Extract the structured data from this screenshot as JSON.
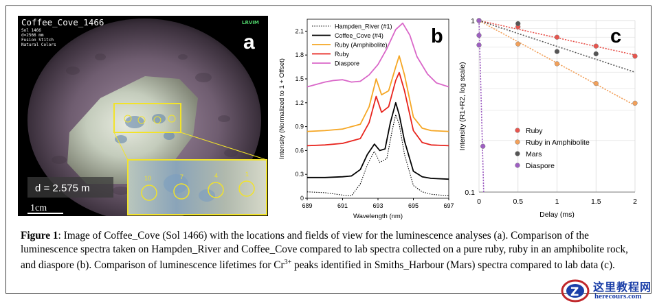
{
  "panel_a": {
    "image_title": "Coffee_Cove_1466",
    "meta_lines": [
      "Sol 1466",
      "d=2566 mm",
      "Fusion Stitch",
      "Natural Colors"
    ],
    "instrument_tag": "LRVIM",
    "panel_letter": "a",
    "distance_label": "d = 2.575 m",
    "scale_label": "1cm",
    "spot_labels": [
      "10",
      "7",
      "4",
      "1"
    ]
  },
  "chart_data": [
    {
      "type": "line",
      "panel_letter": "b",
      "xlabel": "Wavelength (nm)",
      "ylabel": "Intensity (Normalized to 1 + Offset)",
      "xlim": [
        689,
        697
      ],
      "ylim": [
        0,
        2.25
      ],
      "xticks": [
        "689",
        "691",
        "693",
        "695",
        "697"
      ],
      "yticks": [
        "0",
        "0.3",
        "0.6",
        "0.9",
        "1.2",
        "1.5",
        "1.8",
        "2.1"
      ],
      "legend_position": "top",
      "series": [
        {
          "name": "Hampden_River (#1)",
          "color": "#000000",
          "style": "dotted",
          "x": [
            689,
            690,
            691,
            691.5,
            692,
            692.4,
            692.8,
            693.1,
            693.5,
            693.8,
            694.0,
            694.2,
            694.5,
            695,
            695.5,
            696,
            697
          ],
          "y": [
            0.08,
            0.07,
            0.04,
            0.03,
            0.18,
            0.42,
            0.59,
            0.45,
            0.5,
            0.85,
            1.05,
            0.93,
            0.55,
            0.16,
            0.08,
            0.05,
            0.03
          ]
        },
        {
          "name": "Coffee_Cove (#4)",
          "color": "#000000",
          "style": "solid",
          "x": [
            689,
            690,
            691,
            691.5,
            692,
            692.4,
            692.8,
            693.1,
            693.4,
            693.7,
            694.0,
            694.2,
            694.5,
            695,
            695.5,
            696,
            697
          ],
          "y": [
            0.26,
            0.26,
            0.27,
            0.28,
            0.36,
            0.55,
            0.68,
            0.6,
            0.62,
            0.95,
            1.2,
            1.05,
            0.72,
            0.34,
            0.27,
            0.25,
            0.24
          ]
        },
        {
          "name": "Ruby (Amphibolite)",
          "color": "#f5a623",
          "style": "solid",
          "x": [
            689,
            690,
            691,
            692,
            692.5,
            692.9,
            693.2,
            693.6,
            694.0,
            694.2,
            694.5,
            695,
            695.5,
            696,
            697
          ],
          "y": [
            0.84,
            0.85,
            0.87,
            0.93,
            1.15,
            1.5,
            1.3,
            1.35,
            1.65,
            1.79,
            1.55,
            1.02,
            0.88,
            0.85,
            0.84
          ]
        },
        {
          "name": "Ruby",
          "color": "#e8231c",
          "style": "solid",
          "x": [
            689,
            690,
            691,
            692,
            692.5,
            692.9,
            693.2,
            693.6,
            694.0,
            694.2,
            694.5,
            695,
            695.5,
            696,
            697
          ],
          "y": [
            0.66,
            0.67,
            0.69,
            0.75,
            0.95,
            1.28,
            1.08,
            1.15,
            1.48,
            1.58,
            1.35,
            0.85,
            0.7,
            0.67,
            0.66
          ]
        },
        {
          "name": "Diaspore",
          "color": "#d966c8",
          "style": "solid",
          "x": [
            689,
            689.5,
            690,
            690.5,
            691,
            691.5,
            692,
            692.5,
            693,
            693.5,
            694,
            694.4,
            694.8,
            695.2,
            695.8,
            696.3,
            697
          ],
          "y": [
            1.4,
            1.43,
            1.46,
            1.48,
            1.49,
            1.46,
            1.47,
            1.55,
            1.68,
            1.88,
            2.12,
            2.2,
            2.05,
            1.78,
            1.56,
            1.45,
            1.4
          ]
        }
      ]
    },
    {
      "type": "scatter",
      "panel_letter": "c",
      "xlabel": "Delay (ms)",
      "ylabel": "Intensity (R1+R2, log scale)",
      "xlim": [
        0,
        2
      ],
      "ylim": [
        0.1,
        1
      ],
      "y_scale": "log",
      "xticks": [
        "0",
        "0.5",
        "1",
        "1.5",
        "2"
      ],
      "yticks": [
        "0.1",
        "1"
      ],
      "grid": true,
      "legend_position": "bottom-left",
      "series": [
        {
          "name": "Ruby",
          "color": "#e8554e",
          "x": [
            0,
            0.5,
            1,
            1.5,
            2
          ],
          "y": [
            1.0,
            0.92,
            0.8,
            0.71,
            0.62
          ],
          "trend_start": 1.0,
          "trend_end": 0.63
        },
        {
          "name": "Ruby in Amphibolite",
          "color": "#f2a05a",
          "x": [
            0,
            0.5,
            1,
            1.5,
            2
          ],
          "y": [
            1.0,
            0.73,
            0.56,
            0.43,
            0.33
          ],
          "trend_start": 1.0,
          "trend_end": 0.32
        },
        {
          "name": "Mars",
          "color": "#555555",
          "x": [
            0,
            0.5,
            1,
            1.5
          ],
          "y": [
            1.0,
            0.96,
            0.66,
            0.64
          ],
          "trend_start": 1.0,
          "trend_end": 0.5
        },
        {
          "name": "Diaspore",
          "color": "#9e5fc2",
          "x": [
            0,
            0.0,
            0.0,
            0.05
          ],
          "y": [
            1.0,
            0.82,
            0.72,
            0.185
          ],
          "trend_start": 1.0,
          "trend_end": 0.1
        }
      ]
    }
  ],
  "caption": {
    "label": "Figure 1",
    "text_1": ": Image of Coffee_Cove (Sol 1466) with the locations and fields of view for the luminescence analyses (a). Comparison of the luminescence spectra taken on Hampden_River and Coffee_Cove compared to lab spectra collected on a pure ruby, ruby in an amphibolite rock, and diaspore (b). Comparison of luminescence lifetimes for Cr",
    "superscript": "3+",
    "text_2": " peaks identified in Smiths_Harbour (Mars) spectra compared to lab data (c)."
  },
  "watermark": {
    "line1": "这里教程网",
    "line2": "herecours.com",
    "logo_letter": "Z"
  }
}
